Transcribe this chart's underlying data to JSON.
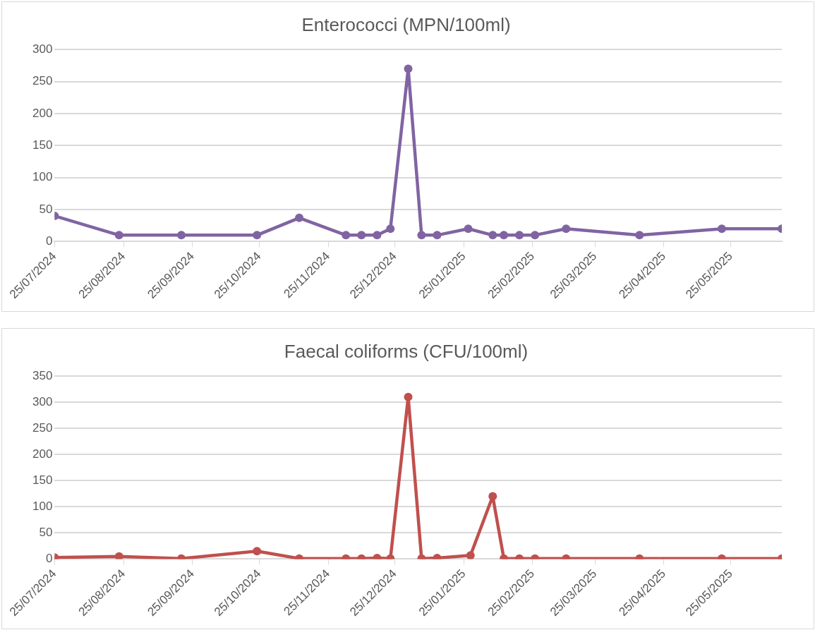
{
  "chart_data": [
    {
      "type": "line",
      "title": "Enterococci (MPN/100ml)",
      "marker": "circle",
      "grid": "y",
      "legend": false,
      "x": [
        "2024-07-25",
        "2024-08-23",
        "2024-09-20",
        "2024-10-24",
        "2024-11-12",
        "2024-12-03",
        "2024-12-10",
        "2024-12-17",
        "2024-12-23",
        "2024-12-31",
        "2025-01-06",
        "2025-01-13",
        "2025-01-27",
        "2025-02-07",
        "2025-02-12",
        "2025-02-19",
        "2025-02-26",
        "2025-03-12",
        "2025-04-14",
        "2025-05-21",
        "2025-06-17"
      ],
      "series": [
        {
          "color": "#8064a2",
          "values": [
            40,
            10,
            10,
            10,
            37,
            10,
            10,
            10,
            20,
            270,
            10,
            10,
            20,
            10,
            10,
            10,
            10,
            20,
            10,
            20,
            20
          ]
        }
      ],
      "xlim": [
        "2024-07-25",
        "2025-06-17"
      ],
      "xticks": [
        {
          "value": "2024-07-25",
          "label": "25/07/2024"
        },
        {
          "value": "2024-08-25",
          "label": "25/08/2024"
        },
        {
          "value": "2024-09-25",
          "label": "25/09/2024"
        },
        {
          "value": "2024-10-25",
          "label": "25/10/2024"
        },
        {
          "value": "2024-11-25",
          "label": "25/11/2024"
        },
        {
          "value": "2024-12-25",
          "label": "25/12/2024"
        },
        {
          "value": "2025-01-25",
          "label": "25/01/2025"
        },
        {
          "value": "2025-02-25",
          "label": "25/02/2025"
        },
        {
          "value": "2025-03-25",
          "label": "25/03/2025"
        },
        {
          "value": "2025-04-25",
          "label": "25/04/2025"
        },
        {
          "value": "2025-05-25",
          "label": "25/05/2025"
        }
      ],
      "ylim": [
        0,
        300
      ],
      "yticks": [
        0,
        50,
        100,
        150,
        200,
        250,
        300
      ]
    },
    {
      "type": "line",
      "title": "Faecal coliforms (CFU/100ml)",
      "marker": "circle",
      "grid": "y",
      "legend": false,
      "x": [
        "2024-07-25",
        "2024-08-23",
        "2024-09-20",
        "2024-10-24",
        "2024-11-12",
        "2024-12-03",
        "2024-12-10",
        "2024-12-17",
        "2024-12-23",
        "2024-12-31",
        "2025-01-06",
        "2025-01-13",
        "2025-01-28",
        "2025-02-07",
        "2025-02-12",
        "2025-02-19",
        "2025-02-26",
        "2025-03-12",
        "2025-04-14",
        "2025-05-21",
        "2025-06-17"
      ],
      "series": [
        {
          "color": "#c0504d",
          "values": [
            3,
            5,
            1,
            15,
            1,
            1,
            1,
            2,
            1,
            310,
            1,
            2,
            7,
            120,
            1,
            1,
            1,
            1,
            1,
            1,
            1
          ]
        }
      ],
      "xlim": [
        "2024-07-25",
        "2025-06-17"
      ],
      "xticks": [
        {
          "value": "2024-07-25",
          "label": "25/07/2024"
        },
        {
          "value": "2024-08-25",
          "label": "25/08/2024"
        },
        {
          "value": "2024-09-25",
          "label": "25/09/2024"
        },
        {
          "value": "2024-10-25",
          "label": "25/10/2024"
        },
        {
          "value": "2024-11-25",
          "label": "25/11/2024"
        },
        {
          "value": "2024-12-25",
          "label": "25/12/2024"
        },
        {
          "value": "2025-01-25",
          "label": "25/01/2025"
        },
        {
          "value": "2025-02-25",
          "label": "25/02/2025"
        },
        {
          "value": "2025-03-25",
          "label": "25/03/2025"
        },
        {
          "value": "2025-04-25",
          "label": "25/04/2025"
        },
        {
          "value": "2025-05-25",
          "label": "25/05/2025"
        }
      ],
      "ylim": [
        0,
        350
      ],
      "yticks": [
        0,
        50,
        100,
        150,
        200,
        250,
        300,
        350
      ]
    }
  ]
}
